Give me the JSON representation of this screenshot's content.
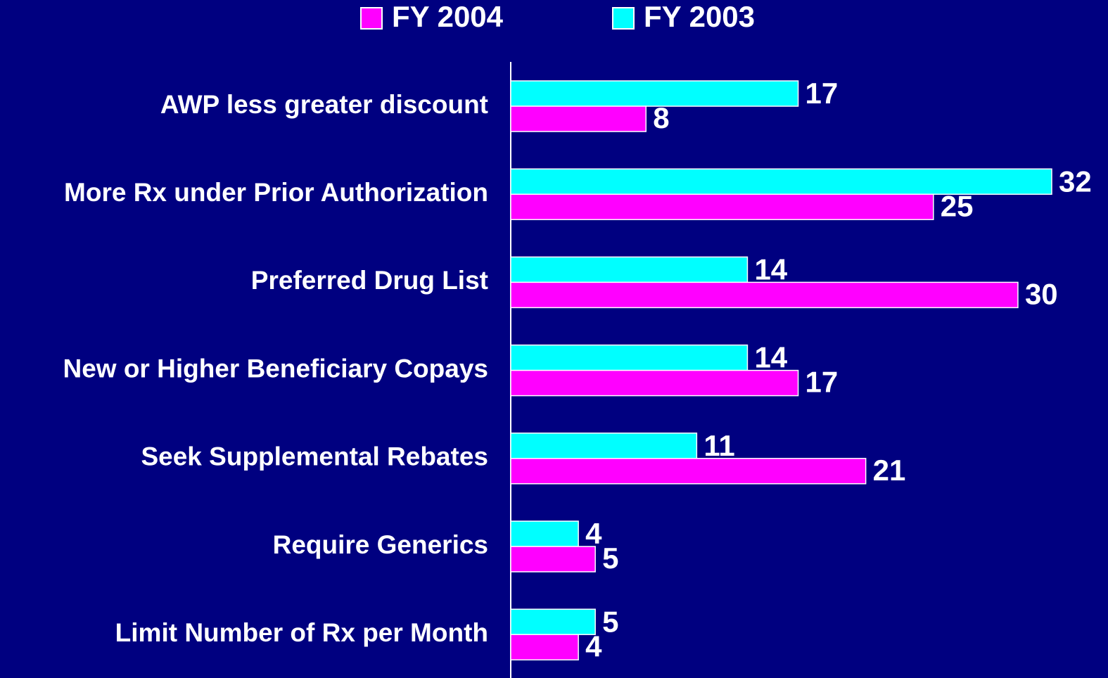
{
  "chart_data": {
    "type": "hbar",
    "categories": [
      "AWP less greater discount",
      "More Rx under Prior Authorization",
      "Preferred Drug List",
      "New or Higher Beneficiary Copays",
      "Seek Supplemental Rebates",
      "Require Generics",
      "Limit Number of Rx per Month"
    ],
    "series": [
      {
        "name": "FY 2004",
        "color": "#ff00ff",
        "values": [
          8,
          25,
          30,
          17,
          21,
          5,
          4
        ]
      },
      {
        "name": "FY 2003",
        "color": "#00ffff",
        "values": [
          17,
          32,
          14,
          14,
          11,
          4,
          5
        ]
      }
    ],
    "xlim": [
      0,
      32
    ]
  }
}
